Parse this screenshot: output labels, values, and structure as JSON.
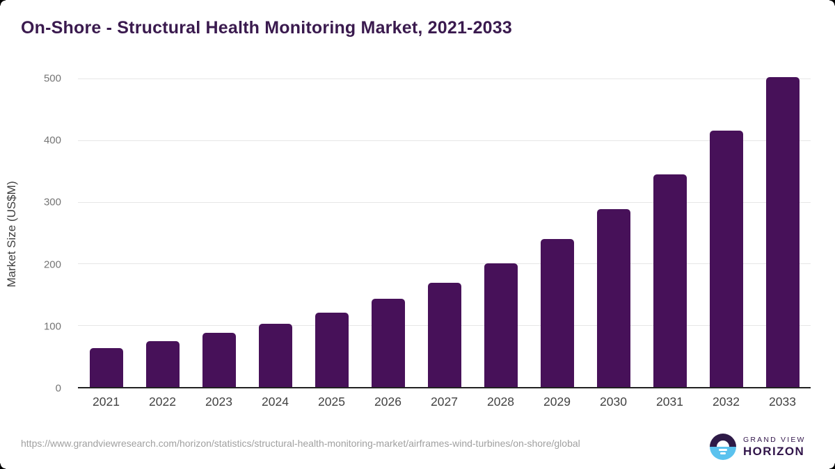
{
  "title": "On-Shore - Structural Health Monitoring Market, 2021-2033",
  "chart_data": {
    "type": "bar",
    "title": "On-Shore - Structural Health Monitoring Market, 2021-2033",
    "categories": [
      "2021",
      "2022",
      "2023",
      "2024",
      "2025",
      "2026",
      "2027",
      "2028",
      "2029",
      "2030",
      "2031",
      "2032",
      "2033"
    ],
    "values": [
      63,
      74,
      88,
      103,
      120,
      143,
      169,
      200,
      240,
      288,
      345,
      415,
      502
    ],
    "xlabel": "",
    "ylabel": "Market Size (US$M)",
    "ylim": [
      0,
      500
    ],
    "yticks": [
      0,
      100,
      200,
      300,
      400,
      500
    ],
    "grid": "horizontal-light",
    "legend": "none",
    "bar_color": "#471159"
  },
  "colors": {
    "title_text": "#3a1a4e",
    "bar": "#471159",
    "gridline": "#e6e6e6",
    "axis_line": "#212121",
    "y_tick_text": "#757575",
    "x_tick_text": "#424242",
    "footer_text": "#a0a0a0",
    "logo_purple": "#2e1a47",
    "logo_blue": "#5bc2ee",
    "logo_text": "#31154a"
  },
  "footer": {
    "url": "https://www.grandviewresearch.com/horizon/statistics/structural-health-monitoring-market/airframes-wind-turbines/on-shore/global"
  },
  "logo": {
    "name_top": "GRAND VIEW",
    "name_bottom": "HORIZON",
    "sun_icon": "horizon-sun-icon"
  }
}
